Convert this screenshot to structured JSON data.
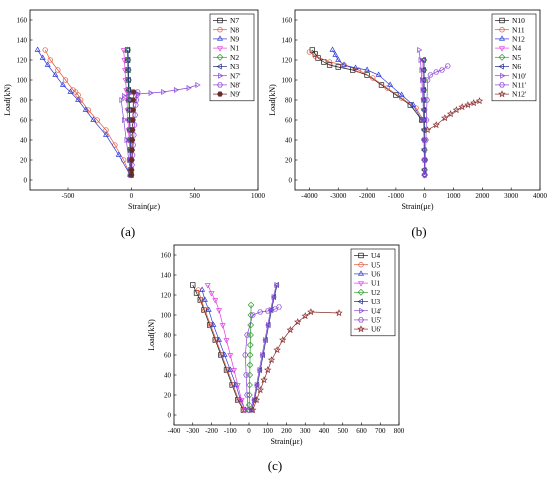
{
  "figure": {
    "panel_labels": [
      "(a)",
      "(b)",
      "(c)"
    ]
  },
  "chart_data": [
    {
      "type": "line",
      "panel": "(a)",
      "xlabel": "Strain(με)",
      "ylabel": "Load(kN)",
      "xlim": [
        -800,
        1000
      ],
      "ylim": [
        -10,
        170
      ],
      "xticks": [
        -500,
        0,
        500,
        1000
      ],
      "yticks": [
        0,
        20,
        40,
        60,
        80,
        100,
        120,
        140,
        160
      ],
      "legend_position": "top-right",
      "series": [
        {
          "name": "N7",
          "color": "#1a1a1a",
          "marker": "square",
          "x": [
            -2,
            -4,
            -5,
            -7,
            -9,
            -11,
            -14,
            -17,
            -20,
            -23,
            -25,
            -27,
            -29,
            -30
          ],
          "y": [
            5,
            10,
            20,
            30,
            40,
            50,
            60,
            70,
            80,
            90,
            100,
            110,
            120,
            130
          ]
        },
        {
          "name": "N8",
          "color": "#e0533a",
          "marker": "circle",
          "x": [
            -10,
            -60,
            -130,
            -200,
            -270,
            -340,
            -400,
            -420,
            -440,
            -460,
            -520,
            -580,
            -640,
            -680
          ],
          "y": [
            5,
            20,
            35,
            50,
            60,
            70,
            80,
            85,
            88,
            90,
            100,
            110,
            120,
            130
          ]
        },
        {
          "name": "N9",
          "color": "#2e3bd6",
          "marker": "triangle-up",
          "x": [
            -10,
            -100,
            -200,
            -300,
            -360,
            -420,
            -480,
            -540,
            -600,
            -660,
            -700,
            -740
          ],
          "y": [
            5,
            25,
            45,
            60,
            70,
            80,
            88,
            95,
            105,
            115,
            122,
            130
          ]
        },
        {
          "name": "N1",
          "color": "#e040e0",
          "marker": "triangle-down",
          "x": [
            -3,
            -6,
            -10,
            -14,
            -18,
            -22,
            -26,
            -30,
            -35,
            -40,
            -45,
            -50,
            -55,
            -60
          ],
          "y": [
            5,
            10,
            20,
            30,
            40,
            50,
            60,
            70,
            80,
            90,
            100,
            110,
            120,
            130
          ]
        },
        {
          "name": "N2",
          "color": "#2e9e2e",
          "marker": "diamond",
          "x": [
            -2,
            -4,
            -6,
            -8,
            -10,
            -12,
            -14,
            -16,
            -18,
            -20,
            -22,
            -24,
            -26,
            -28
          ],
          "y": [
            5,
            10,
            20,
            30,
            40,
            50,
            60,
            70,
            80,
            90,
            100,
            110,
            120,
            130
          ]
        },
        {
          "name": "N3",
          "color": "#1f2a8a",
          "marker": "triangle-left",
          "x": [
            -1,
            -2,
            -4,
            -6,
            -8,
            -10,
            -12,
            -14,
            -16,
            -18,
            -20,
            -22,
            -24,
            -26
          ],
          "y": [
            5,
            10,
            20,
            30,
            40,
            50,
            60,
            70,
            80,
            90,
            100,
            110,
            120,
            130
          ]
        },
        {
          "name": "N7'",
          "color": "#8a44d8",
          "marker": "triangle-right",
          "x": [
            -5,
            -20,
            -40,
            -60,
            -80,
            -60,
            -20,
            50,
            150,
            250,
            350,
            450,
            520
          ],
          "y": [
            5,
            20,
            40,
            60,
            80,
            84,
            86,
            86,
            87,
            88,
            90,
            92,
            95
          ]
        },
        {
          "name": "N8'",
          "color": "#8a44d8",
          "marker": "hexagon",
          "x": [
            0,
            5,
            10,
            15,
            20,
            25,
            30,
            35,
            40,
            45,
            50
          ],
          "y": [
            5,
            15,
            25,
            35,
            45,
            55,
            65,
            75,
            80,
            85,
            88
          ]
        },
        {
          "name": "N9'",
          "color": "#6a2a2a",
          "marker": "hexagon-filled",
          "x": [
            0,
            2,
            4,
            6,
            8,
            10,
            12,
            14,
            16,
            18
          ],
          "y": [
            5,
            10,
            20,
            30,
            40,
            50,
            60,
            70,
            80,
            88
          ]
        }
      ]
    },
    {
      "type": "line",
      "panel": "(b)",
      "xlabel": "Strain(με)",
      "ylabel": "Load(kN)",
      "xlim": [
        -4500,
        4000
      ],
      "ylim": [
        -10,
        170
      ],
      "xticks": [
        -4000,
        -3000,
        -2000,
        -1000,
        0,
        1000,
        2000,
        3000,
        4000
      ],
      "yticks": [
        0,
        20,
        40,
        60,
        80,
        100,
        120,
        140,
        160
      ],
      "legend_position": "top-right",
      "series": [
        {
          "name": "N10",
          "color": "#1a1a1a",
          "marker": "square",
          "x": [
            -100,
            -500,
            -1000,
            -1500,
            -2000,
            -2500,
            -3000,
            -3300,
            -3500,
            -3700,
            -3800,
            -3900
          ],
          "y": [
            60,
            75,
            85,
            95,
            105,
            110,
            113,
            115,
            118,
            122,
            126,
            130
          ]
        },
        {
          "name": "N11",
          "color": "#e0533a",
          "marker": "circle",
          "x": [
            -50,
            -300,
            -800,
            -1300,
            -1800,
            -2300,
            -2800,
            -3300,
            -3800,
            -4000
          ],
          "y": [
            60,
            72,
            82,
            92,
            102,
            110,
            115,
            118,
            124,
            128
          ]
        },
        {
          "name": "N12",
          "color": "#2e3bd6",
          "marker": "triangle-up",
          "x": [
            -100,
            -400,
            -800,
            -1200,
            -1600,
            -2000,
            -2400,
            -2800,
            -3000,
            -3100,
            -3200
          ],
          "y": [
            60,
            75,
            85,
            95,
            105,
            110,
            112,
            115,
            120,
            125,
            130
          ]
        },
        {
          "name": "N4",
          "color": "#e040e0",
          "marker": "triangle-down",
          "x": [
            -5,
            -10,
            -15,
            -20,
            -25,
            -30,
            -35,
            -40,
            -45,
            -50,
            -55,
            -60,
            -65
          ],
          "y": [
            5,
            10,
            20,
            30,
            40,
            50,
            60,
            70,
            80,
            90,
            100,
            110,
            120
          ]
        },
        {
          "name": "N5",
          "color": "#2e9e2e",
          "marker": "diamond",
          "x": [
            -2,
            -4,
            -6,
            -8,
            -10,
            -12,
            -14,
            -16,
            -18,
            -20,
            -22,
            -24,
            -26
          ],
          "y": [
            5,
            10,
            20,
            30,
            40,
            50,
            60,
            70,
            80,
            90,
            100,
            110,
            120
          ]
        },
        {
          "name": "N6",
          "color": "#1f2a8a",
          "marker": "triangle-left",
          "x": [
            0,
            -2,
            -4,
            -6,
            -8,
            -10,
            -12,
            -14,
            -16,
            -18,
            -20,
            -22,
            -24
          ],
          "y": [
            5,
            10,
            20,
            30,
            40,
            50,
            60,
            70,
            80,
            90,
            100,
            110,
            120
          ]
        },
        {
          "name": "N10'",
          "color": "#8a44d8",
          "marker": "triangle-right",
          "x": [
            0,
            -10,
            -20,
            -40,
            -60,
            -80,
            -100,
            -120,
            -150,
            -200
          ],
          "y": [
            5,
            20,
            40,
            60,
            80,
            90,
            100,
            110,
            120,
            130
          ]
        },
        {
          "name": "N11'",
          "color": "#8a44d8",
          "marker": "hexagon",
          "x": [
            0,
            20,
            40,
            60,
            80,
            100,
            200,
            400,
            600,
            800
          ],
          "y": [
            5,
            20,
            40,
            60,
            80,
            100,
            105,
            108,
            110,
            114
          ]
        },
        {
          "name": "N12'",
          "color": "#8b2e2e",
          "marker": "star",
          "x": [
            100,
            400,
            700,
            900,
            1100,
            1300,
            1500,
            1700,
            1900
          ],
          "y": [
            50,
            55,
            62,
            66,
            70,
            73,
            75,
            77,
            79
          ]
        }
      ]
    },
    {
      "type": "line",
      "panel": "(c)",
      "xlabel": "Strain(με)",
      "ylabel": "Load(kN)",
      "xlim": [
        -400,
        800
      ],
      "ylim": [
        -10,
        170
      ],
      "xticks": [
        -400,
        -300,
        -200,
        -100,
        0,
        100,
        200,
        300,
        400,
        500,
        600,
        700,
        800
      ],
      "yticks": [
        0,
        20,
        40,
        60,
        80,
        100,
        120,
        140,
        160
      ],
      "legend_position": "top-right",
      "series": [
        {
          "name": "U4",
          "color": "#1a1a1a",
          "marker": "square",
          "x": [
            -30,
            -60,
            -90,
            -120,
            -150,
            -180,
            -210,
            -240,
            -260,
            -280,
            -300
          ],
          "y": [
            5,
            15,
            30,
            45,
            60,
            75,
            90,
            105,
            115,
            122,
            130
          ]
        },
        {
          "name": "U5",
          "color": "#e0533a",
          "marker": "circle",
          "x": [
            -25,
            -55,
            -85,
            -115,
            -145,
            -175,
            -205,
            -235,
            -255,
            -270
          ],
          "y": [
            5,
            15,
            30,
            45,
            60,
            75,
            90,
            105,
            115,
            125
          ]
        },
        {
          "name": "U6",
          "color": "#2e3bd6",
          "marker": "triangle-up",
          "x": [
            -20,
            -45,
            -70,
            -100,
            -130,
            -160,
            -190,
            -215,
            -235,
            -250
          ],
          "y": [
            5,
            15,
            30,
            45,
            60,
            75,
            90,
            105,
            115,
            125
          ]
        },
        {
          "name": "U1",
          "color": "#e040e0",
          "marker": "triangle-down",
          "x": [
            -20,
            -40,
            -60,
            -80,
            -100,
            -120,
            -140,
            -160,
            -180,
            -200,
            -220
          ],
          "y": [
            5,
            15,
            30,
            45,
            60,
            75,
            90,
            105,
            115,
            122,
            130
          ]
        },
        {
          "name": "U2",
          "color": "#2e9e2e",
          "marker": "diamond",
          "x": [
            0,
            1,
            2,
            3,
            4,
            5,
            6,
            7,
            8,
            9,
            10,
            11
          ],
          "y": [
            5,
            10,
            20,
            30,
            40,
            50,
            60,
            70,
            80,
            90,
            100,
            110
          ]
        },
        {
          "name": "U3",
          "color": "#1f2a8a",
          "marker": "triangle-left",
          "x": [
            15,
            30,
            45,
            60,
            75,
            90,
            105,
            120,
            135,
            150
          ],
          "y": [
            5,
            15,
            30,
            45,
            60,
            75,
            90,
            105,
            118,
            130
          ]
        },
        {
          "name": "U4'",
          "color": "#8a44d8",
          "marker": "triangle-right",
          "x": [
            10,
            25,
            40,
            55,
            70,
            85,
            100,
            115,
            130,
            145
          ],
          "y": [
            5,
            15,
            30,
            45,
            60,
            75,
            90,
            105,
            118,
            130
          ]
        },
        {
          "name": "U5'",
          "color": "#8a44d8",
          "marker": "hexagon",
          "x": [
            -5,
            -10,
            -15,
            -20,
            -10,
            20,
            60,
            100,
            140,
            160
          ],
          "y": [
            5,
            20,
            40,
            60,
            80,
            100,
            103,
            104,
            106,
            108
          ]
        },
        {
          "name": "U6'",
          "color": "#8b2e2e",
          "marker": "star",
          "x": [
            20,
            40,
            60,
            80,
            100,
            120,
            150,
            180,
            220,
            260,
            300,
            330,
            480
          ],
          "y": [
            5,
            15,
            25,
            35,
            45,
            55,
            65,
            75,
            85,
            93,
            99,
            103,
            102
          ]
        }
      ]
    }
  ]
}
